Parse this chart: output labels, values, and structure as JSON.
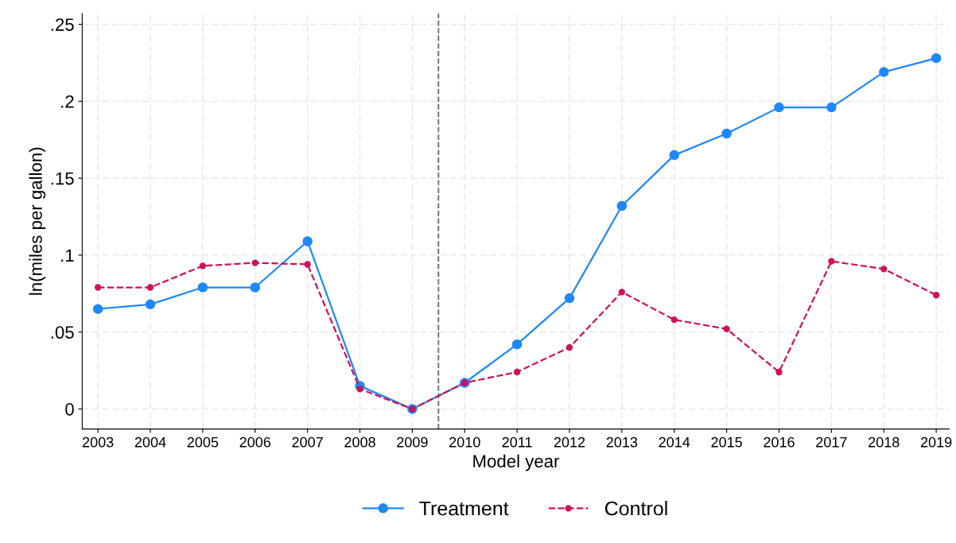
{
  "chart_data": {
    "type": "line",
    "xlabel": "Model year",
    "ylabel": "ln(miles per gallon)",
    "x": [
      2003,
      2004,
      2005,
      2006,
      2007,
      2008,
      2009,
      2010,
      2011,
      2012,
      2013,
      2014,
      2015,
      2016,
      2017,
      2018,
      2019
    ],
    "series": [
      {
        "name": "Treatment",
        "color": "#1e88ff",
        "marker": "circle",
        "line_style": "solid",
        "values": [
          0.065,
          0.068,
          0.079,
          0.079,
          0.109,
          0.015,
          0.0,
          0.017,
          0.042,
          0.072,
          0.132,
          0.165,
          0.179,
          0.196,
          0.196,
          0.219,
          0.228
        ]
      },
      {
        "name": "Control",
        "color": "#d0105a",
        "marker": "circle",
        "line_style": "dashed",
        "values": [
          0.079,
          0.079,
          0.093,
          0.095,
          0.094,
          0.013,
          0.0,
          0.017,
          0.024,
          0.04,
          0.076,
          0.058,
          0.052,
          0.024,
          0.096,
          0.091,
          0.074
        ]
      }
    ],
    "xlim": [
      2002.7,
      2019.25
    ],
    "xticks": [
      2003,
      2004,
      2005,
      2006,
      2007,
      2008,
      2009,
      2010,
      2011,
      2012,
      2013,
      2014,
      2015,
      2016,
      2017,
      2018,
      2019
    ],
    "ylim": [
      -0.013,
      0.257
    ],
    "yticks": [
      {
        "value": 0,
        "label": "0"
      },
      {
        "value": 0.05,
        "label": ".05"
      },
      {
        "value": 0.1,
        "label": ".1"
      },
      {
        "value": 0.15,
        "label": ".15"
      },
      {
        "value": 0.2,
        "label": ".2"
      },
      {
        "value": 0.25,
        "label": ".25"
      }
    ],
    "ref_lines": [
      {
        "axis": "x",
        "value": 2009.5,
        "color": "#666666",
        "line_style": "dashed"
      }
    ],
    "grid": true,
    "legend": "bottom"
  }
}
